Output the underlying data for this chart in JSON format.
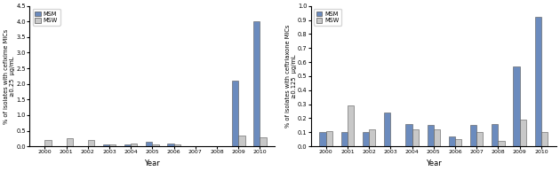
{
  "years": [
    2000,
    2001,
    2002,
    2003,
    2004,
    2005,
    2006,
    2007,
    2008,
    2009,
    2010
  ],
  "cefixime_msm": [
    0.0,
    0.0,
    0.0,
    0.05,
    0.05,
    0.15,
    0.1,
    0.0,
    0.0,
    2.1,
    4.0
  ],
  "cefixime_msw": [
    0.2,
    0.25,
    0.2,
    0.05,
    0.1,
    0.05,
    0.05,
    0.0,
    0.0,
    0.35,
    0.3
  ],
  "ceftriaxone_msm": [
    0.1,
    0.1,
    0.1,
    0.24,
    0.16,
    0.15,
    0.07,
    0.15,
    0.16,
    0.57,
    0.92
  ],
  "ceftriaxone_msw": [
    0.11,
    0.29,
    0.12,
    0.0,
    0.12,
    0.12,
    0.05,
    0.1,
    0.04,
    0.19,
    0.1
  ],
  "msm_color": "#6B8BBE",
  "msw_color": "#C8C8C8",
  "bar_edge_color": "#555555",
  "ylabel1": "% of isolates with cefixime MICs\n≥0.25  μg/mL",
  "ylabel2": "% of isolates with ceftriaxone MICs\n≥0.125  μg/mL",
  "xlabel": "Year",
  "ylim1": [
    0,
    4.5
  ],
  "ylim2": [
    0,
    1.0
  ],
  "yticks1": [
    0,
    0.5,
    1.0,
    1.5,
    2.0,
    2.5,
    3.0,
    3.5,
    4.0,
    4.5
  ],
  "yticks2": [
    0,
    0.1,
    0.2,
    0.3,
    0.4,
    0.5,
    0.6,
    0.7,
    0.8,
    0.9,
    1.0
  ],
  "legend_labels": [
    "MSM",
    "MSW"
  ]
}
